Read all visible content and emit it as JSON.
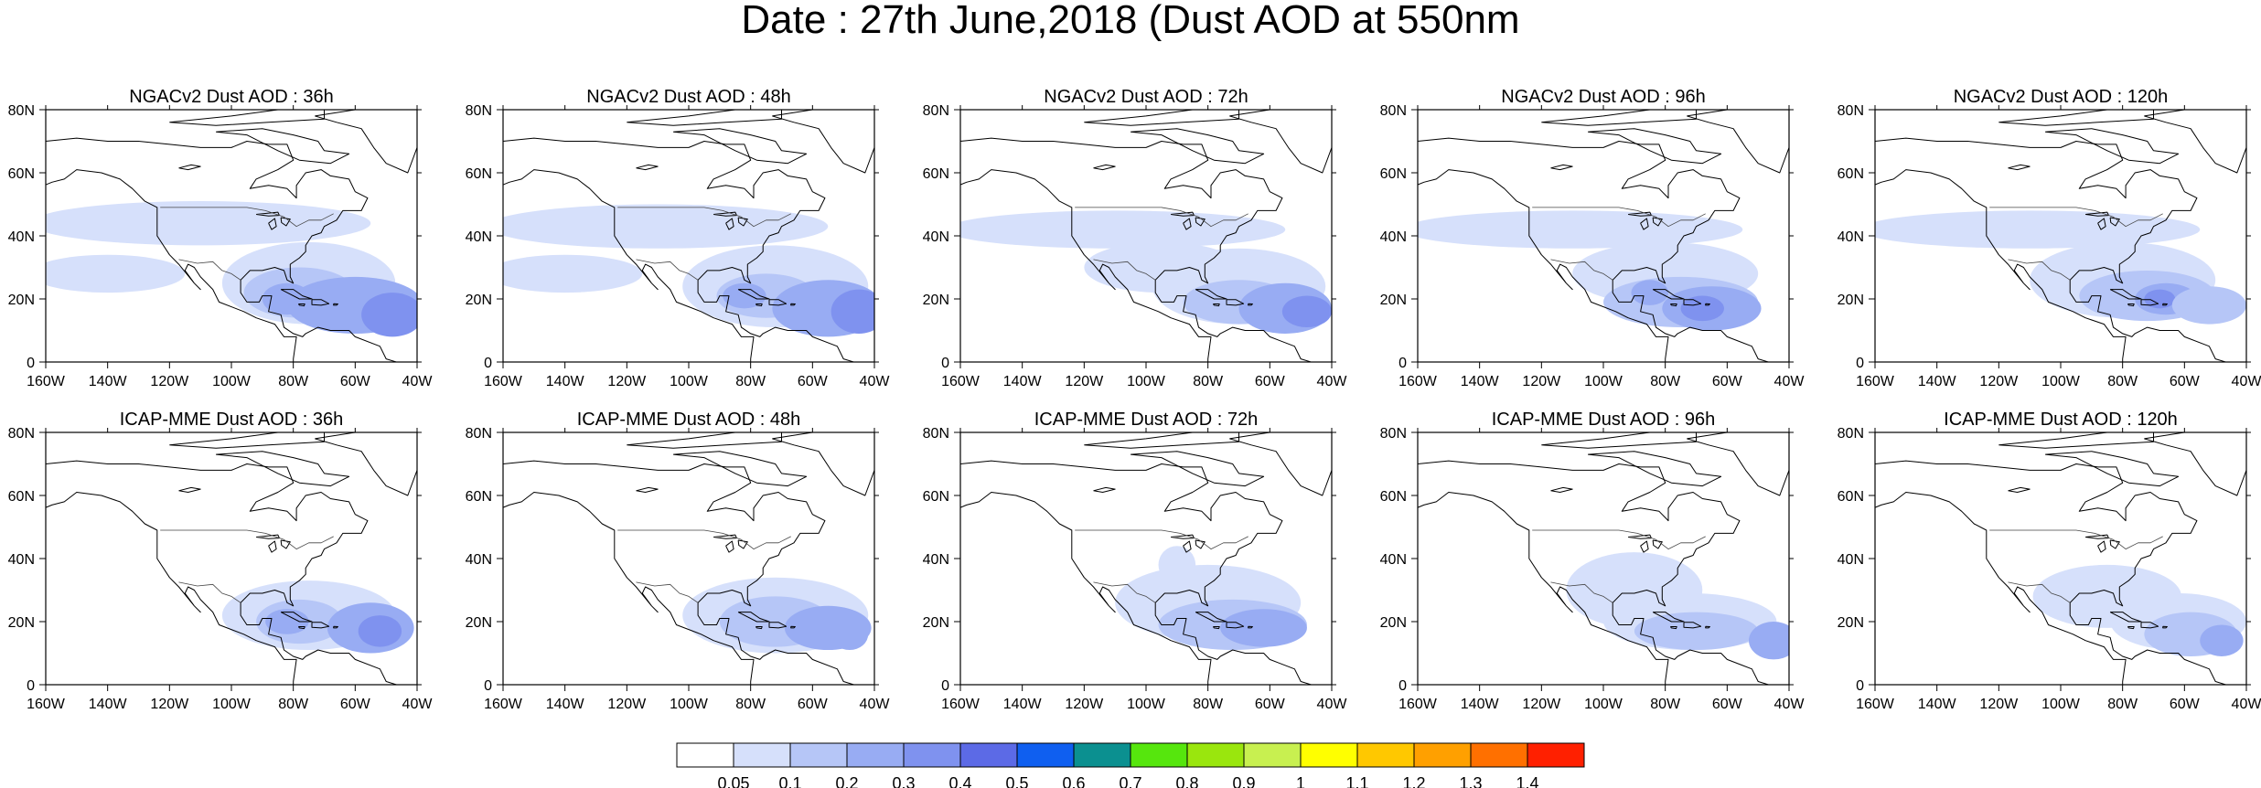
{
  "title": "Date : 27th June,2018 (Dust AOD at 550nm",
  "panels": [
    {
      "title": "NGACv2 Dust AOD : 36h",
      "row": 0,
      "col": 0
    },
    {
      "title": "NGACv2 Dust AOD : 48h",
      "row": 0,
      "col": 1
    },
    {
      "title": "NGACv2 Dust AOD : 72h",
      "row": 0,
      "col": 2
    },
    {
      "title": "NGACv2 Dust AOD : 96h",
      "row": 0,
      "col": 3
    },
    {
      "title": "NGACv2 Dust AOD : 120h",
      "row": 0,
      "col": 4
    },
    {
      "title": "ICAP-MME Dust AOD : 36h",
      "row": 1,
      "col": 0
    },
    {
      "title": "ICAP-MME Dust AOD : 48h",
      "row": 1,
      "col": 1
    },
    {
      "title": "ICAP-MME Dust AOD : 72h",
      "row": 1,
      "col": 2
    },
    {
      "title": "ICAP-MME Dust AOD : 96h",
      "row": 1,
      "col": 3
    },
    {
      "title": "ICAP-MME Dust AOD : 120h",
      "row": 1,
      "col": 4
    }
  ],
  "axes": {
    "lon_ticks": [
      "160W",
      "140W",
      "120W",
      "100W",
      "80W",
      "60W",
      "40W"
    ],
    "lat_ticks": [
      "80N",
      "60N",
      "40N",
      "20N",
      "0"
    ],
    "lon_range": [
      -160,
      -40
    ],
    "lat_range": [
      0,
      80
    ]
  },
  "colorbar": {
    "colors": [
      "#ffffff",
      "#d6e0fb",
      "#b6c6f7",
      "#98acf3",
      "#7f92ef",
      "#5c6ae6",
      "#0f5ff0",
      "#0b9090",
      "#56e60d",
      "#9ae60d",
      "#c8f050",
      "#ffff00",
      "#ffc800",
      "#ffa000",
      "#ff7000",
      "#ff2000"
    ],
    "labels": [
      "0.05",
      "0.1",
      "0.2",
      "0.3",
      "0.4",
      "0.5",
      "0.6",
      "0.7",
      "0.8",
      "0.9",
      "1",
      "1.1",
      "1.2",
      "1.3",
      "1.4"
    ]
  }
}
